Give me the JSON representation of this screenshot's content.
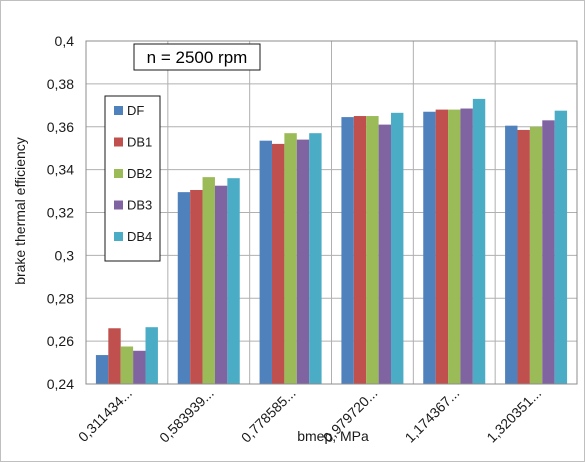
{
  "chart_data": {
    "type": "bar",
    "categories": [
      "0,311434...",
      "0,583939...",
      "0,778585...",
      "0,979720...",
      "1,174367...",
      "1,320351..."
    ],
    "series": [
      {
        "name": "DF",
        "color": "#4f81bd",
        "values": [
          0.2535,
          0.3295,
          0.3535,
          0.3645,
          0.367,
          0.3605
        ]
      },
      {
        "name": "DB1",
        "color": "#c0504d",
        "values": [
          0.266,
          0.3305,
          0.352,
          0.365,
          0.368,
          0.3585
        ]
      },
      {
        "name": "DB2",
        "color": "#9bbb59",
        "values": [
          0.2575,
          0.3365,
          0.357,
          0.365,
          0.368,
          0.36
        ]
      },
      {
        "name": "DB3",
        "color": "#8064a2",
        "values": [
          0.2555,
          0.3325,
          0.354,
          0.361,
          0.3685,
          0.363
        ]
      },
      {
        "name": "DB4",
        "color": "#4bacc6",
        "values": [
          0.2665,
          0.336,
          0.357,
          0.3665,
          0.373,
          0.3675
        ]
      }
    ],
    "ylim": [
      0.24,
      0.4
    ],
    "yticks": [
      "0,24",
      "0,26",
      "0,28",
      "0,3",
      "0,32",
      "0,34",
      "0,36",
      "0,38",
      "0,4"
    ],
    "xlabel": "bmep, MPa",
    "ylabel": "brake thermal  efficiency",
    "annotation": "n = 2500 rpm",
    "legend_position": "left",
    "grid": true
  }
}
